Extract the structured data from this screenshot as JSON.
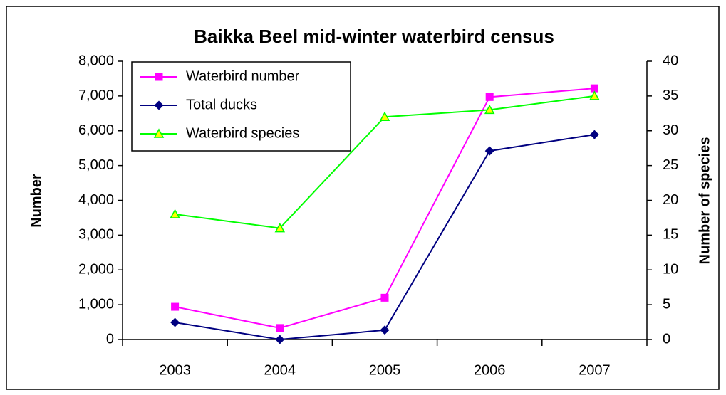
{
  "chart_data": {
    "type": "line",
    "title": "Baikka Beel mid-winter waterbird census",
    "ylabel": "Number",
    "y2label": "Number of species",
    "categories": [
      "2003",
      "2004",
      "2005",
      "2006",
      "2007"
    ],
    "series": [
      {
        "name": "Waterbird number",
        "color": "#ff00ff",
        "marker": "square",
        "values": [
          940,
          330,
          1200,
          6970,
          7220
        ]
      },
      {
        "name": "Total ducks",
        "color": "#000080",
        "marker": "diamond",
        "values": [
          490,
          0,
          270,
          5420,
          5890
        ]
      },
      {
        "name": "Waterbird species",
        "color": "#00ff00",
        "marker": "triangle",
        "axis": "y2",
        "values": [
          18,
          16,
          32,
          33,
          35
        ]
      }
    ],
    "ylim": [
      0,
      8000
    ],
    "yticks": [
      0,
      {
        "value": 1000,
        "label": "1,000"
      },
      {
        "value": 2000,
        "label": "2,000"
      },
      {
        "value": 3000,
        "label": "3,000"
      },
      {
        "value": 4000,
        "label": "4,000"
      },
      {
        "value": 5000,
        "label": "5,000"
      },
      {
        "value": 6000,
        "label": "6,000"
      },
      {
        "value": 7000,
        "label": "7,000"
      },
      {
        "value": 8000,
        "label": "8,000"
      }
    ],
    "y2lim": [
      0,
      40
    ],
    "y2ticks": [
      0,
      5,
      10,
      15,
      20,
      25,
      30,
      35,
      40
    ],
    "grid": false,
    "legend": "upper left"
  }
}
